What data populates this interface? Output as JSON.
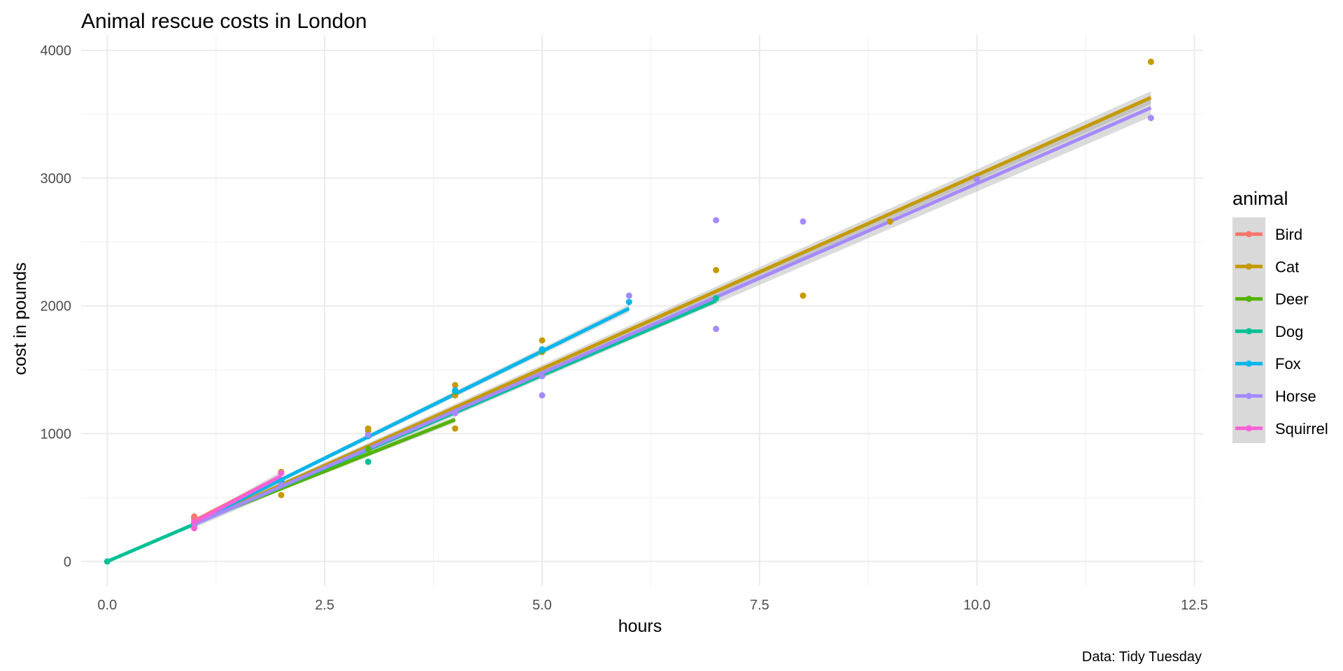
{
  "chart_data": {
    "type": "scatter",
    "title": "Animal rescue costs in London",
    "xlabel": "hours",
    "ylabel": "cost in pounds",
    "caption": "Data: Tidy Tuesday",
    "xlim": [
      -0.3,
      12.6
    ],
    "ylim": [
      -190,
      4120
    ],
    "x_ticks": [
      0,
      2.5,
      5,
      7.5,
      10,
      12.5
    ],
    "x_tick_labels": [
      "0.0",
      "2.5",
      "5.0",
      "7.5",
      "10.0",
      "12.5"
    ],
    "y_ticks": [
      0,
      1000,
      2000,
      3000,
      4000
    ],
    "y_tick_labels": [
      "0",
      "1000",
      "2000",
      "3000",
      "4000"
    ],
    "grid": true,
    "legend": {
      "title": "animal",
      "position": "right"
    },
    "series": [
      {
        "name": "Bird",
        "color": "#F8766D",
        "points": [
          [
            1,
            352
          ],
          [
            1,
            340
          ],
          [
            1,
            328
          ],
          [
            1,
            300
          ],
          [
            2,
            695
          ]
        ],
        "fit": {
          "x": [
            1,
            2
          ],
          "y": [
            318,
            668
          ]
        }
      },
      {
        "name": "Cat",
        "color": "#C49A00",
        "points": [
          [
            1,
            295
          ],
          [
            2,
            700
          ],
          [
            2,
            520
          ],
          [
            3,
            1040
          ],
          [
            3,
            1020
          ],
          [
            4,
            1380
          ],
          [
            4,
            1300
          ],
          [
            4,
            1040
          ],
          [
            5,
            1730
          ],
          [
            5,
            1640
          ],
          [
            7,
            2280
          ],
          [
            8,
            2080
          ],
          [
            9,
            2660
          ],
          [
            10,
            2990
          ],
          [
            12,
            3910
          ]
        ],
        "fit": {
          "x": [
            1,
            12
          ],
          "y": [
            295,
            3630
          ]
        },
        "band": 50
      },
      {
        "name": "Deer",
        "color": "#53B400",
        "points": [
          [
            1,
            295
          ],
          [
            2,
            610
          ],
          [
            3,
            880
          ]
        ],
        "fit": {
          "x": [
            1,
            4
          ],
          "y": [
            300,
            1110
          ]
        },
        "band": 25
      },
      {
        "name": "Dog",
        "color": "#00C094",
        "points": [
          [
            0,
            0
          ],
          [
            1,
            290
          ],
          [
            2,
            600
          ],
          [
            3,
            780
          ],
          [
            4,
            1330
          ],
          [
            5,
            1650
          ],
          [
            7,
            2060
          ]
        ],
        "fit": {
          "x": [
            0,
            7
          ],
          "y": [
            0,
            2040
          ]
        },
        "band": 15
      },
      {
        "name": "Fox",
        "color": "#00B6EB",
        "points": [
          [
            1,
            295
          ],
          [
            2,
            630
          ],
          [
            3,
            980
          ],
          [
            4,
            1340
          ],
          [
            5,
            1660
          ],
          [
            6,
            2030
          ]
        ],
        "fit": {
          "x": [
            1,
            6
          ],
          "y": [
            305,
            1980
          ]
        },
        "band": 30
      },
      {
        "name": "Horse",
        "color": "#A58AFF",
        "points": [
          [
            1,
            300
          ],
          [
            2,
            600
          ],
          [
            3,
            990
          ],
          [
            4,
            1160
          ],
          [
            5,
            1300
          ],
          [
            5,
            1450
          ],
          [
            6,
            2080
          ],
          [
            7,
            2670
          ],
          [
            7,
            1820
          ],
          [
            8,
            2660
          ],
          [
            10,
            2990
          ],
          [
            12,
            3470
          ]
        ],
        "fit": {
          "x": [
            1,
            12
          ],
          "y": [
            290,
            3550
          ]
        },
        "band": 70
      },
      {
        "name": "Squirrel",
        "color": "#FB61D7",
        "points": [
          [
            1,
            260
          ],
          [
            1,
            310
          ],
          [
            2,
            690
          ]
        ],
        "fit": {
          "x": [
            1,
            2
          ],
          "y": [
            305,
            670
          ]
        },
        "band": 35
      }
    ]
  }
}
